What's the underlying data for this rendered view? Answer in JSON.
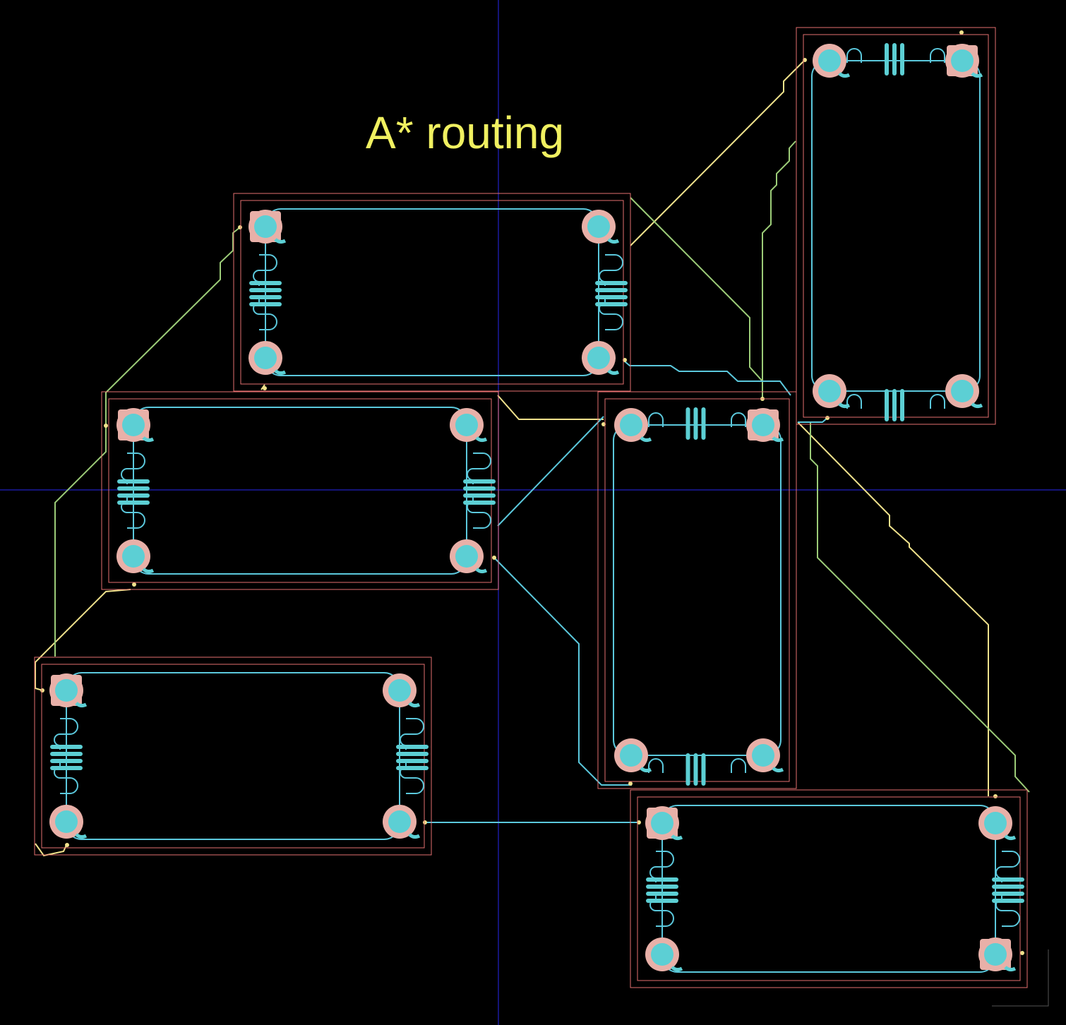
{
  "title": "A* routing",
  "colors": {
    "background": "#000000",
    "title": "#f0f060",
    "outline": "#e36f6f",
    "trace_blue": "#5bc8dc",
    "trace_yellow": "#f0e28c",
    "trace_green": "#9ccc78",
    "pad_ring": "#e8b0a8",
    "pad_core": "#5ccfd4",
    "axis": "#1a1aa0"
  },
  "icons": {
    "pad": "circular-pad-icon",
    "inductor": "meander-inductor-icon",
    "capacitor": "interdigital-capacitor-icon"
  }
}
